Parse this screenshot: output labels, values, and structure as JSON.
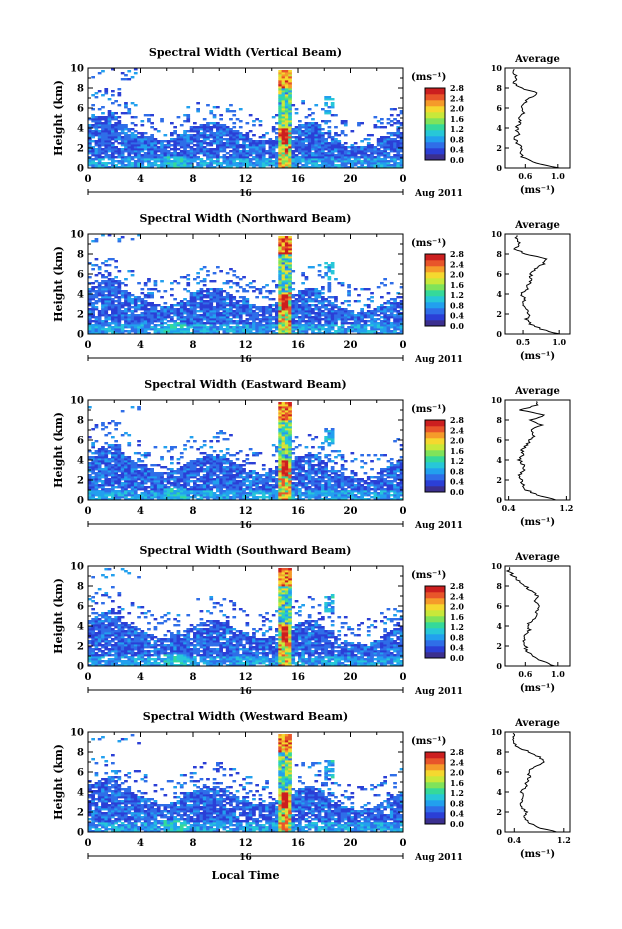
{
  "figure": {
    "x_tick_labels": [
      "0",
      "4",
      "8",
      "12",
      "16",
      "20",
      "0"
    ],
    "date_tick_label": "16",
    "date_label": "Aug 2011",
    "bottom_xlabel": "Local Time",
    "ylabel": "Height (km)",
    "y_tick_labels": [
      "0",
      "2",
      "4",
      "6",
      "8",
      "10"
    ],
    "colorbar_unit": "(ms⁻¹)",
    "colorbar_ticks": [
      "0.0",
      "0.4",
      "0.8",
      "1.2",
      "1.6",
      "2.0",
      "2.4",
      "2.8"
    ],
    "profile_title": "Average",
    "profile_xlabel": "(ms⁻¹)",
    "colormap": [
      "#3b2f8f",
      "#2b3fd6",
      "#2f6ee8",
      "#22a0ee",
      "#27c7d8",
      "#35d99a",
      "#7fe35a",
      "#c8e83a",
      "#f5d82f",
      "#f59b2a",
      "#e8552a",
      "#cc1f1f"
    ]
  },
  "chart_data": [
    {
      "type": "heatmap",
      "title": "Spectral Width (Vertical Beam)",
      "x_range_hours": [
        0,
        24
      ],
      "y_range_km": [
        0,
        10
      ],
      "color_range": [
        0.0,
        2.8
      ],
      "profile": {
        "type": "line",
        "title": "Average",
        "xlim": [
          0.35,
          1.15
        ],
        "x_tick_labels": [
          "0.6",
          "1.0"
        ],
        "x_tick_values": [
          0.6,
          1.0
        ],
        "heights_km": [
          0,
          0.5,
          1,
          1.5,
          2,
          2.5,
          3,
          3.5,
          4,
          4.5,
          5,
          5.5,
          6,
          6.5,
          7,
          7.5,
          8,
          8.5,
          9,
          9.5
        ],
        "values": [
          1.0,
          0.72,
          0.58,
          0.52,
          0.55,
          0.5,
          0.48,
          0.52,
          0.49,
          0.55,
          0.52,
          0.58,
          0.55,
          0.6,
          0.65,
          0.75,
          0.55,
          0.45,
          0.5,
          0.45
        ]
      }
    },
    {
      "type": "heatmap",
      "title": "Spectral Width (Northward Beam)",
      "x_range_hours": [
        0,
        24
      ],
      "y_range_km": [
        0,
        10
      ],
      "color_range": [
        0.0,
        2.8
      ],
      "profile": {
        "type": "line",
        "title": "Average",
        "xlim": [
          0.25,
          1.15
        ],
        "x_tick_labels": [
          "0.5",
          "1.0"
        ],
        "x_tick_values": [
          0.5,
          1.0
        ],
        "heights_km": [
          0,
          0.5,
          1,
          1.5,
          2,
          2.5,
          3,
          3.5,
          4,
          4.5,
          5,
          5.5,
          6,
          6.5,
          7,
          7.5,
          8,
          8.5,
          9,
          9.5
        ],
        "values": [
          1.0,
          0.75,
          0.6,
          0.55,
          0.58,
          0.55,
          0.5,
          0.52,
          0.48,
          0.55,
          0.58,
          0.62,
          0.6,
          0.68,
          0.78,
          0.82,
          0.55,
          0.38,
          0.45,
          0.4
        ]
      }
    },
    {
      "type": "heatmap",
      "title": "Spectral Width (Eastward Beam)",
      "x_range_hours": [
        0,
        24
      ],
      "y_range_km": [
        0,
        10
      ],
      "color_range": [
        0.0,
        2.8
      ],
      "profile": {
        "type": "line",
        "title": "Average",
        "xlim": [
          0.35,
          1.25
        ],
        "x_tick_labels": [
          "0.4",
          "1.2"
        ],
        "x_tick_values": [
          0.4,
          1.2
        ],
        "heights_km": [
          0,
          0.5,
          1,
          1.5,
          2,
          2.5,
          3,
          3.5,
          4,
          4.5,
          5,
          5.5,
          6,
          6.5,
          7,
          7.5,
          8,
          8.5,
          9,
          9.5
        ],
        "values": [
          1.05,
          0.8,
          0.65,
          0.6,
          0.58,
          0.55,
          0.62,
          0.6,
          0.55,
          0.6,
          0.58,
          0.65,
          0.7,
          0.75,
          0.72,
          0.85,
          0.7,
          0.9,
          0.55,
          0.8
        ]
      }
    },
    {
      "type": "heatmap",
      "title": "Spectral Width (Southward Beam)",
      "x_range_hours": [
        0,
        24
      ],
      "y_range_km": [
        0,
        10
      ],
      "color_range": [
        0.0,
        2.8
      ],
      "profile": {
        "type": "line",
        "title": "Average",
        "xlim": [
          0.35,
          1.15
        ],
        "x_tick_labels": [
          "0.6",
          "1.0"
        ],
        "x_tick_values": [
          0.6,
          1.0
        ],
        "heights_km": [
          0,
          0.5,
          1,
          1.5,
          2,
          2.5,
          3,
          3.5,
          4,
          4.5,
          5,
          5.5,
          6,
          6.5,
          7,
          7.5,
          8,
          8.5,
          9,
          9.5
        ],
        "values": [
          0.95,
          0.8,
          0.7,
          0.62,
          0.6,
          0.58,
          0.6,
          0.65,
          0.62,
          0.68,
          0.72,
          0.75,
          0.78,
          0.7,
          0.76,
          0.66,
          0.6,
          0.52,
          0.45,
          0.4
        ]
      }
    },
    {
      "type": "heatmap",
      "title": "Spectral Width (Westward Beam)",
      "x_range_hours": [
        0,
        24
      ],
      "y_range_km": [
        0,
        10
      ],
      "color_range": [
        0.0,
        2.8
      ],
      "profile": {
        "type": "line",
        "title": "Average",
        "xlim": [
          0.25,
          1.3
        ],
        "x_tick_labels": [
          "0.4",
          "1.2"
        ],
        "x_tick_values": [
          0.4,
          1.2
        ],
        "heights_km": [
          0,
          0.5,
          1,
          1.5,
          2,
          2.5,
          3,
          3.5,
          4,
          4.5,
          5,
          5.5,
          6,
          6.5,
          7,
          7.5,
          8,
          8.5,
          9,
          9.5
        ],
        "values": [
          1.1,
          0.75,
          0.62,
          0.55,
          0.6,
          0.52,
          0.5,
          0.55,
          0.52,
          0.58,
          0.6,
          0.65,
          0.62,
          0.72,
          0.88,
          0.8,
          0.65,
          0.45,
          0.4,
          0.38
        ]
      }
    }
  ]
}
